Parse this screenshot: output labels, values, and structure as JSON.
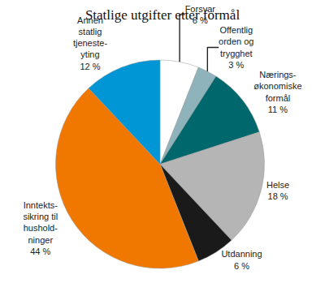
{
  "chart_data": {
    "type": "pie",
    "title": "Statlige utgifter etter formål",
    "categories": [
      "Forsvar",
      "Offentlig\norden og\ntrygghet",
      "Nærings-\nøkonomiske\nformål",
      "Helse",
      "Utdanning",
      "Inntekts-\nsikring til\nhushold-\nninger",
      "Annen\nstatlig\ntjeneste-\nyting"
    ],
    "values": [
      6,
      3,
      11,
      18,
      6,
      44,
      12
    ],
    "value_labels": [
      "6 %",
      "3 %",
      "11 %",
      "18 %",
      "6 %",
      "44 %",
      "12 %"
    ],
    "colors": [
      "#ffffff",
      "#8fb3ba",
      "#00686d",
      "#b5b5b5",
      "#1a1a1a",
      "#f07800",
      "#0096d6"
    ],
    "data_labels": true
  }
}
